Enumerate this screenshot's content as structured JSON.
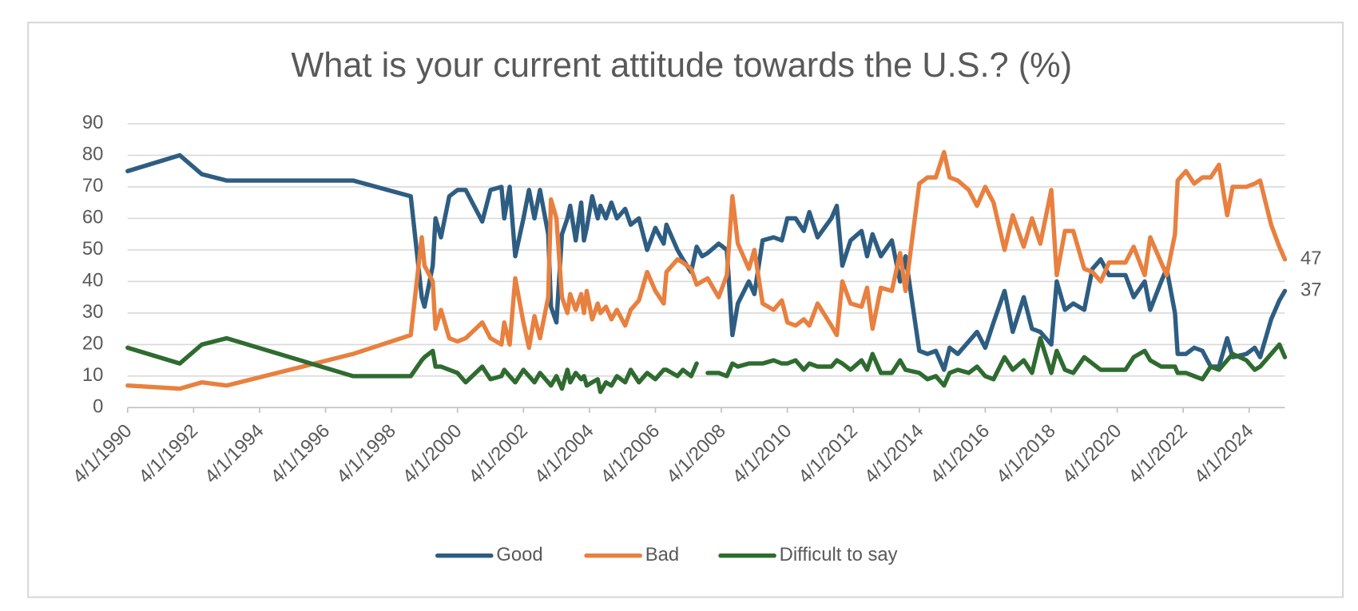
{
  "chart_data": {
    "type": "line",
    "title": "What is your current attitude towards the U.S.? (%)",
    "x": [
      "4/1/1990",
      "11/1/1991",
      "7/1/1992",
      "4/1/1993",
      "2/1/1997",
      "11/1/1998",
      "3/1/1999",
      "4/1/1999",
      "7/1/1999",
      "8/1/1999",
      "10/1/1999",
      "1/1/2000",
      "4/1/2000",
      "7/1/2000",
      "1/1/2001",
      "4/1/2001",
      "8/1/2001",
      "9/1/2001",
      "11/1/2001",
      "1/1/2002",
      "4/1/2002",
      "6/1/2002",
      "8/1/2002",
      "10/1/2002",
      "1/1/2003",
      "2/1/2003",
      "4/1/2003",
      "6/1/2003",
      "8/1/2003",
      "9/1/2003",
      "11/1/2003",
      "1/1/2004",
      "2/1/2004",
      "3/1/2004",
      "5/1/2004",
      "7/1/2004",
      "8/1/2004",
      "10/1/2004",
      "12/1/2004",
      "2/1/2005",
      "5/1/2005",
      "7/1/2005",
      "10/1/2005",
      "1/1/2006",
      "4/1/2006",
      "7/1/2006",
      "8/1/2006",
      "12/1/2006",
      "2/1/2007",
      "5/1/2007",
      "7/1/2007",
      "9/1/2007",
      "11/1/2007",
      "3/1/2008",
      "6/1/2008",
      "8/1/2008",
      "10/1/2008",
      "2/1/2009",
      "4/1/2009",
      "7/1/2009",
      "11/1/2009",
      "2/1/2010",
      "4/1/2010",
      "7/1/2010",
      "10/1/2010",
      "12/1/2010",
      "3/1/2011",
      "8/1/2011",
      "10/1/2011",
      "12/1/2011",
      "3/1/2012",
      "7/1/2012",
      "9/1/2012",
      "11/1/2012",
      "2/1/2013",
      "6/1/2013",
      "9/1/2013",
      "11/1/2013",
      "4/1/2014",
      "7/1/2014",
      "10/1/2014",
      "1/1/2015",
      "3/1/2015",
      "6/1/2015",
      "10/1/2015",
      "1/1/2016",
      "4/1/2016",
      "7/1/2016",
      "11/1/2016",
      "2/1/2017",
      "6/1/2017",
      "9/1/2017",
      "12/1/2017",
      "4/1/2018",
      "6/1/2018",
      "9/1/2018",
      "12/1/2018",
      "4/1/2019",
      "7/1/2019",
      "10/1/2019",
      "1/1/2020",
      "7/1/2020",
      "10/1/2020",
      "2/1/2021",
      "4/1/2021",
      "8/1/2021",
      "10/1/2021",
      "1/1/2022",
      "2/1/2022",
      "5/1/2022",
      "8/1/2022",
      "11/1/2022",
      "2/1/2023",
      "5/1/2023",
      "8/1/2023",
      "10/1/2023",
      "3/1/2024",
      "6/1/2024",
      "8/1/2024",
      "12/1/2024",
      "3/1/2025",
      "5/1/2025"
    ],
    "series": [
      {
        "name": "Good",
        "color": "#2e5d82",
        "values": [
          75,
          80,
          74,
          72,
          72,
          67,
          35,
          32,
          45,
          60,
          54,
          67,
          69,
          69,
          59,
          69,
          70,
          60,
          70,
          48,
          60,
          69,
          60,
          69,
          55,
          32,
          27,
          55,
          60,
          64,
          53,
          65,
          53,
          57,
          67,
          60,
          64,
          60,
          65,
          60,
          63,
          58,
          60,
          50,
          57,
          52,
          58,
          50,
          47,
          43,
          51,
          48,
          49,
          52,
          50,
          23,
          33,
          40,
          36,
          53,
          54,
          53,
          60,
          60,
          56,
          62,
          54,
          60,
          64,
          45,
          53,
          56,
          48,
          55,
          48,
          53,
          40,
          48,
          18,
          17,
          18,
          12,
          19,
          17,
          21,
          24,
          19,
          27,
          37,
          24,
          35,
          25,
          24,
          20,
          40,
          31,
          33,
          31,
          44,
          47,
          42,
          42,
          35,
          40,
          31,
          40,
          44,
          30,
          17,
          17,
          19,
          18,
          13,
          13,
          22,
          16,
          17,
          19,
          16,
          28,
          34,
          37
        ]
      },
      {
        "name": "Bad",
        "color": "#e8803f",
        "values": [
          7,
          6,
          8,
          7,
          17,
          23,
          54,
          45,
          40,
          25,
          31,
          22,
          21,
          22,
          27,
          22,
          20,
          27,
          20,
          41,
          27,
          19,
          29,
          22,
          35,
          66,
          60,
          35,
          30,
          36,
          31,
          36,
          30,
          37,
          28,
          33,
          30,
          32,
          28,
          31,
          26,
          31,
          34,
          43,
          37,
          33,
          43,
          47,
          46,
          44,
          39,
          40,
          41,
          35,
          42,
          67,
          52,
          44,
          50,
          33,
          31,
          34,
          27,
          26,
          28,
          26,
          33,
          26,
          23,
          40,
          33,
          32,
          38,
          25,
          38,
          37,
          49,
          37,
          71,
          73,
          73,
          81,
          73,
          72,
          69,
          64,
          70,
          65,
          50,
          61,
          51,
          60,
          52,
          69,
          42,
          56,
          56,
          44,
          43,
          40,
          46,
          46,
          51,
          42,
          54,
          46,
          42,
          55,
          72,
          75,
          71,
          73,
          73,
          77,
          61,
          70,
          70,
          71,
          72,
          58,
          51,
          47
        ]
      },
      {
        "name": "Difficult to say",
        "color": "#2f6b30",
        "values": [
          19,
          14,
          20,
          22,
          10,
          10,
          15,
          16,
          18,
          13,
          13,
          12,
          11,
          8,
          13,
          9,
          10,
          12,
          10,
          8,
          12,
          10,
          8,
          11,
          8,
          7,
          10,
          6,
          12,
          8,
          11,
          9,
          10,
          7,
          8,
          9,
          5,
          8,
          7,
          10,
          8,
          12,
          8,
          11,
          9,
          12,
          12,
          10,
          12,
          10,
          14,
          null,
          11,
          11,
          10,
          14,
          13,
          14,
          14,
          14,
          15,
          14,
          14,
          15,
          12,
          14,
          13,
          13,
          15,
          14,
          12,
          15,
          12,
          17,
          11,
          11,
          15,
          12,
          11,
          9,
          10,
          7,
          11,
          12,
          11,
          13,
          10,
          9,
          16,
          12,
          15,
          11,
          22,
          11,
          18,
          12,
          11,
          16,
          14,
          12,
          12,
          12,
          16,
          18,
          15,
          13,
          13,
          13,
          11,
          11,
          10,
          9,
          13,
          12,
          15,
          17,
          15,
          12,
          13,
          17,
          20,
          16
        ]
      }
    ],
    "xlim": [
      "4/1/1990",
      "5/1/2025"
    ],
    "xticks": [
      "4/1/1990",
      "4/1/1992",
      "4/1/1994",
      "4/1/1996",
      "4/1/1998",
      "4/1/2000",
      "4/1/2002",
      "4/1/2004",
      "4/1/2006",
      "4/1/2008",
      "4/1/2010",
      "4/1/2012",
      "4/1/2014",
      "4/1/2016",
      "4/1/2018",
      "4/1/2020",
      "4/1/2022",
      "4/1/2024"
    ],
    "ylim": [
      0,
      90
    ],
    "yticks": [
      0,
      10,
      20,
      30,
      40,
      50,
      60,
      70,
      80,
      90
    ],
    "grid": true,
    "legend": "bottom"
  }
}
